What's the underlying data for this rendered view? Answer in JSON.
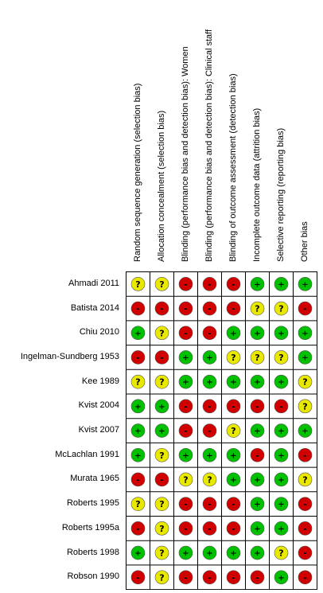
{
  "domains": [
    "Random sequence generation (selection bias)",
    "Allocation concealment (selection bias)",
    "Blinding (performance bias and detection bias): Women",
    "Blinding (performance bias and detection bias): Clinical staff",
    "Blinding of outcome assessment (detection bias)",
    "Incomplete outcome data (attrition bias)",
    "Selective reporting (reporting bias)",
    "Other bias"
  ],
  "studies": [
    "Ahmadi 2011",
    "Batista 2014",
    "Chiu 2010",
    "Ingelman-Sundberg 1953",
    "Kee 1989",
    "Kvist 2004",
    "Kvist 2007",
    "McLachlan 1991",
    "Murata 1965",
    "Roberts 1995",
    "Roberts 1995a",
    "Roberts 1998",
    "Robson 1990"
  ],
  "judgements": [
    [
      "?",
      "?",
      "-",
      "-",
      "-",
      "+",
      "+",
      "+"
    ],
    [
      "-",
      "-",
      "-",
      "-",
      "-",
      "?",
      "?",
      "-"
    ],
    [
      "+",
      "?",
      "-",
      "-",
      "+",
      "+",
      "+",
      "+"
    ],
    [
      "-",
      "-",
      "+",
      "+",
      "?",
      "?",
      "?",
      "+"
    ],
    [
      "?",
      "?",
      "+",
      "+",
      "+",
      "+",
      "+",
      "?"
    ],
    [
      "+",
      "+",
      "-",
      "-",
      "-",
      "-",
      "-",
      "?"
    ],
    [
      "+",
      "+",
      "-",
      "-",
      "?",
      "+",
      "+",
      "+"
    ],
    [
      "+",
      "?",
      "+",
      "+",
      "+",
      "-",
      "+",
      "-"
    ],
    [
      "-",
      "-",
      "?",
      "?",
      "+",
      "+",
      "+",
      "?"
    ],
    [
      "?",
      "?",
      "-",
      "-",
      "-",
      "+",
      "+",
      "-"
    ],
    [
      "-",
      "?",
      "-",
      "-",
      "-",
      "+",
      "+",
      "-"
    ],
    [
      "+",
      "?",
      "+",
      "+",
      "+",
      "+",
      "?",
      "-"
    ],
    [
      "-",
      "?",
      "-",
      "-",
      "-",
      "-",
      "+",
      "-"
    ]
  ],
  "legend_colors": {
    "+": "#00c000",
    "?": "#e8e800",
    "-": "#d00000"
  }
}
